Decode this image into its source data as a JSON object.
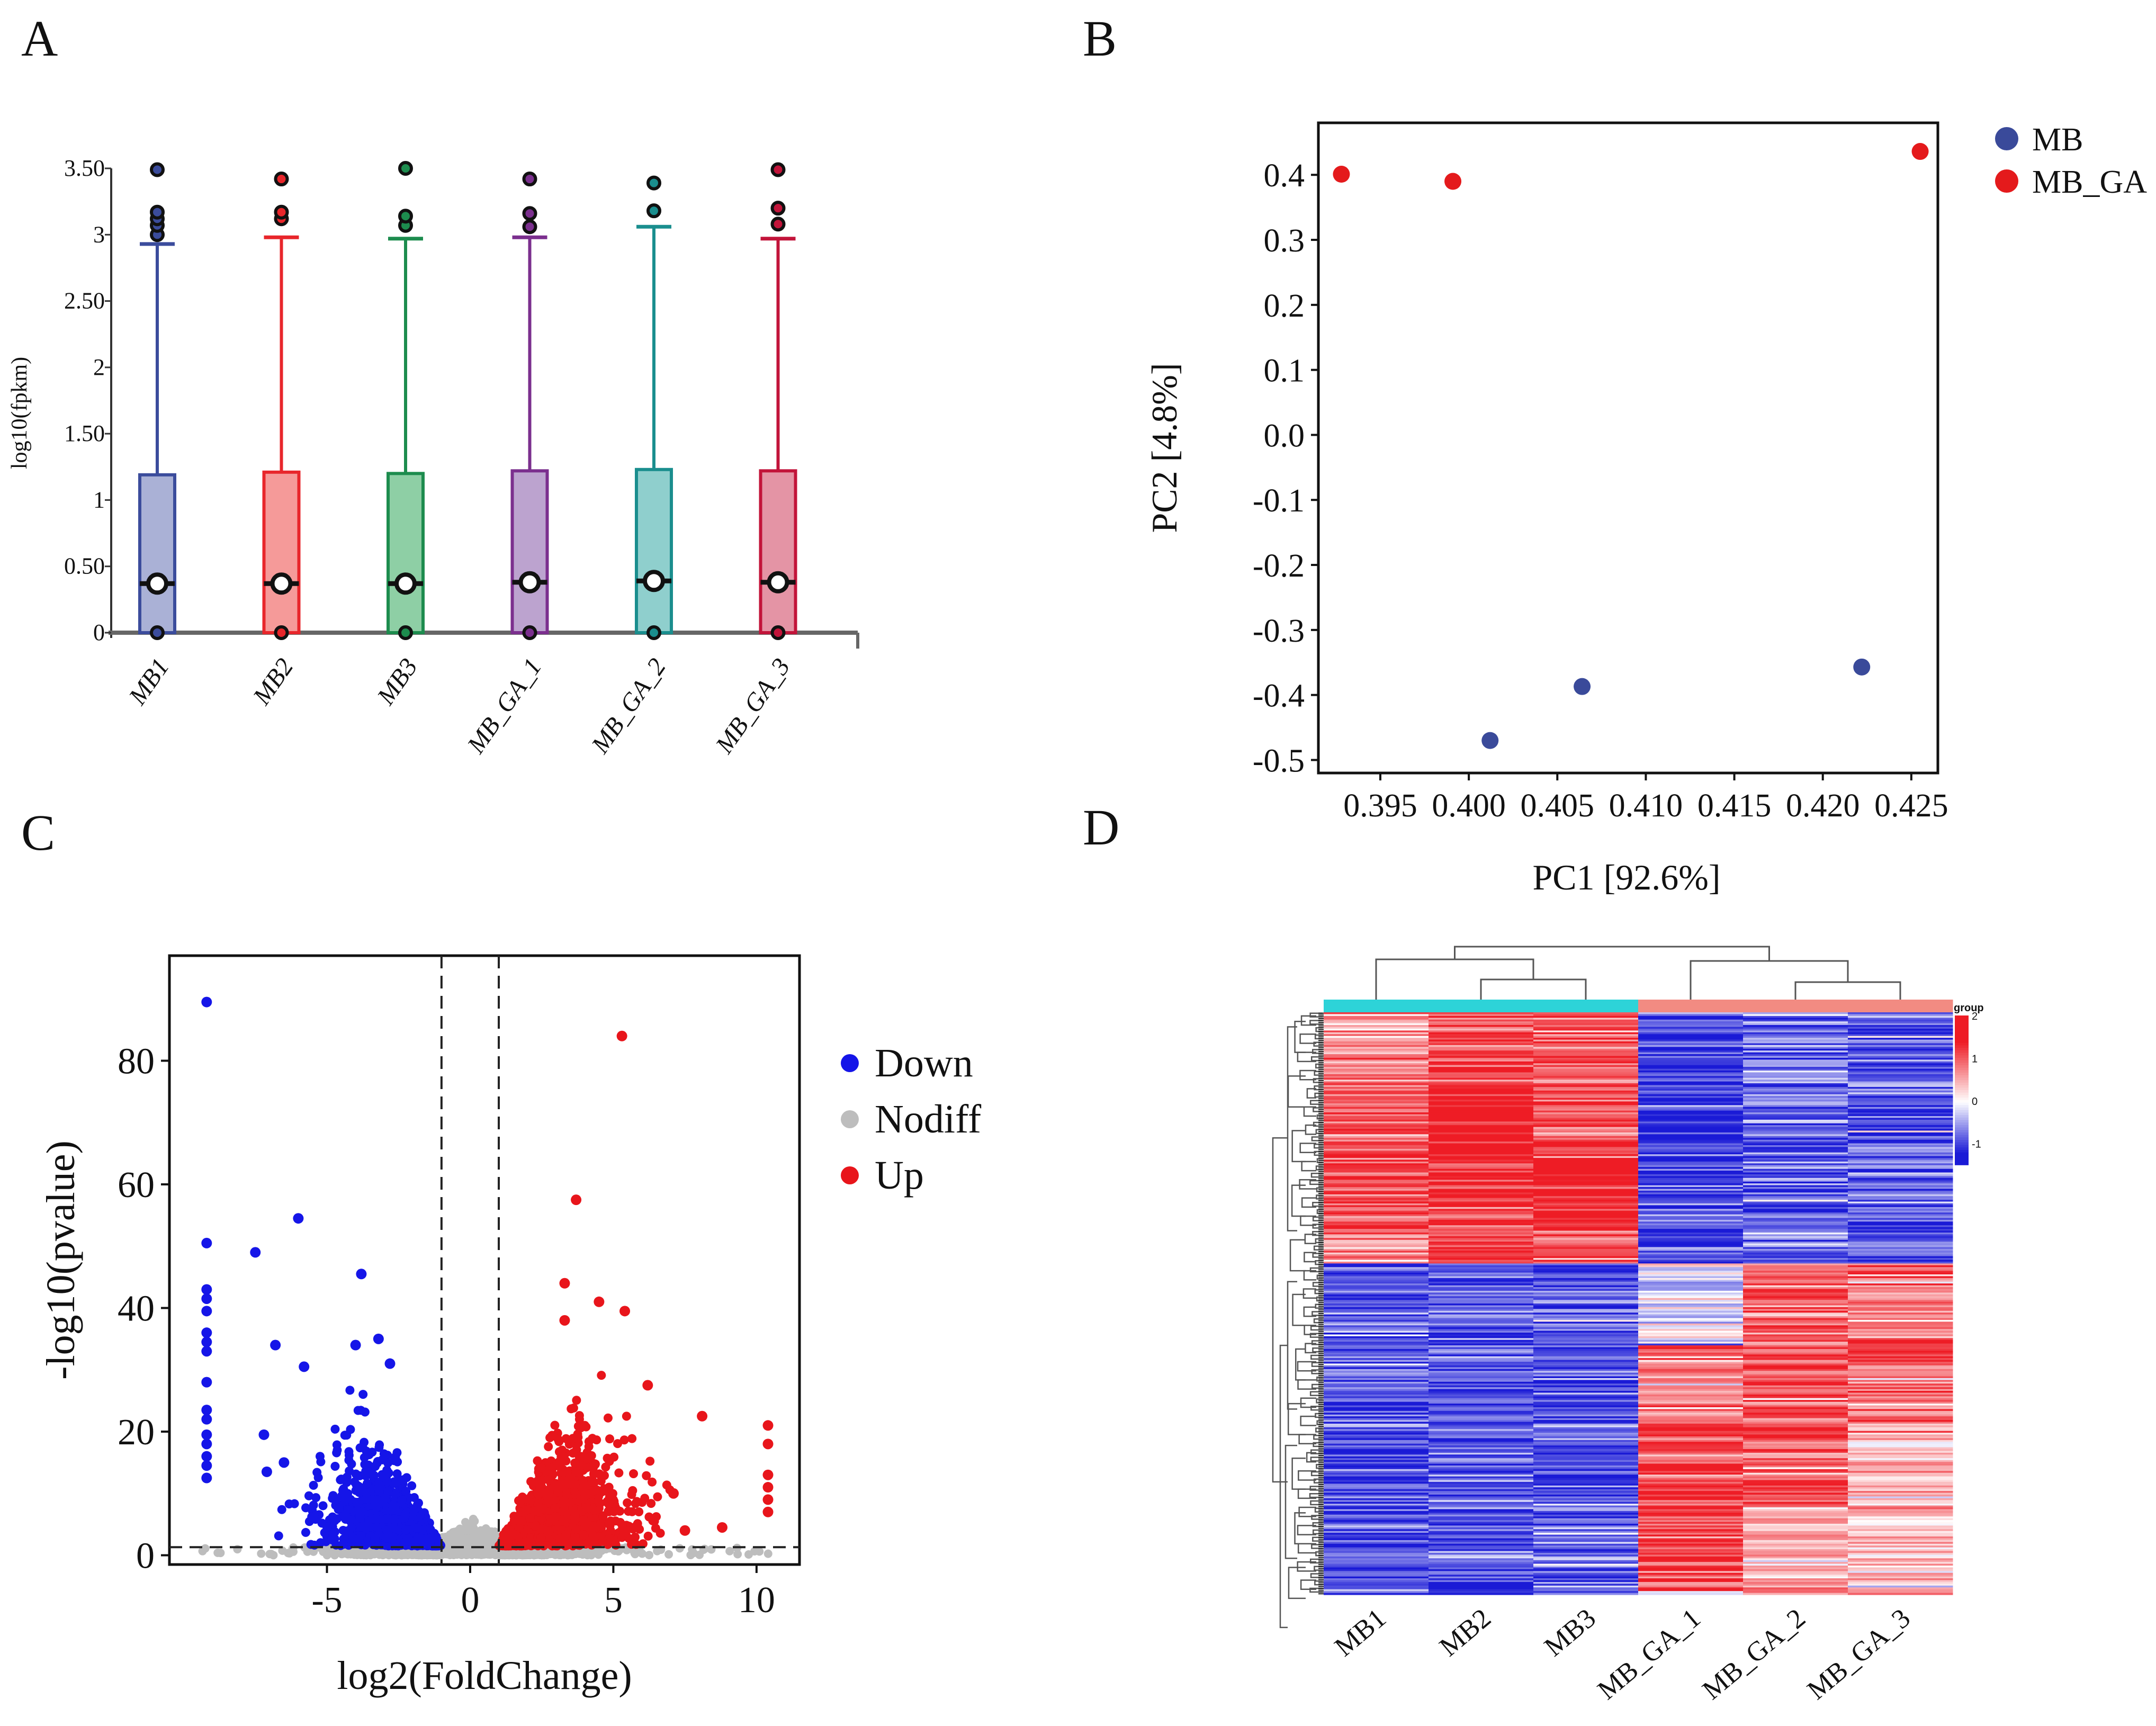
{
  "panel_labels": {
    "a": "A",
    "b": "B",
    "c": "C",
    "d": "D"
  },
  "chart_data": [
    {
      "id": "A",
      "type": "box",
      "ylabel": "log10(fpkm)",
      "ylim": [
        0,
        3.5
      ],
      "yticks": [
        "0",
        "0.50",
        "1",
        "1.50",
        "2",
        "2.50",
        "3",
        "3.50"
      ],
      "categories": [
        "MB1",
        "MB2",
        "MB3",
        "MB_GA_1",
        "MB_GA_2",
        "MB_GA_3"
      ],
      "colors": [
        "#3b4c9c",
        "#e8262b",
        "#1d8c4e",
        "#7b2f8e",
        "#1a8e8e",
        "#c2143a"
      ],
      "fills": [
        "#aab1d6",
        "#f59a99",
        "#8ecfa5",
        "#bca3cf",
        "#8fcfcd",
        "#e494a5"
      ],
      "boxes": [
        {
          "min": 0,
          "q1": 0,
          "median": 0.37,
          "q3": 1.19,
          "max": 2.93,
          "mean": 0.37,
          "outliers_high": [
            3.0,
            3.07,
            3.12,
            3.17,
            3.49
          ],
          "outliers_low": [
            0
          ]
        },
        {
          "min": 0,
          "q1": 0,
          "median": 0.37,
          "q3": 1.21,
          "max": 2.98,
          "mean": 0.37,
          "outliers_high": [
            3.12,
            3.17,
            3.42
          ],
          "outliers_low": [
            0
          ]
        },
        {
          "min": 0,
          "q1": 0,
          "median": 0.37,
          "q3": 1.2,
          "max": 2.97,
          "mean": 0.37,
          "outliers_high": [
            3.07,
            3.14,
            3.5
          ],
          "outliers_low": [
            0
          ]
        },
        {
          "min": 0,
          "q1": 0,
          "median": 0.38,
          "q3": 1.22,
          "max": 2.98,
          "mean": 0.38,
          "outliers_high": [
            3.06,
            3.16,
            3.42
          ],
          "outliers_low": [
            0
          ]
        },
        {
          "min": 0,
          "q1": 0,
          "median": 0.39,
          "q3": 1.23,
          "max": 3.06,
          "mean": 0.39,
          "outliers_high": [
            3.18,
            3.39
          ],
          "outliers_low": [
            0
          ]
        },
        {
          "min": 0,
          "q1": 0,
          "median": 0.38,
          "q3": 1.22,
          "max": 2.97,
          "mean": 0.38,
          "outliers_high": [
            3.08,
            3.2,
            3.49
          ],
          "outliers_low": [
            0
          ]
        }
      ]
    },
    {
      "id": "B",
      "type": "scatter",
      "xlabel": "PC1 [92.6%]",
      "ylabel": "PC2 [4.8%]",
      "xlim": [
        0.3915,
        0.4265
      ],
      "ylim": [
        -0.52,
        0.48
      ],
      "xticks": [
        0.395,
        0.4,
        0.405,
        0.41,
        0.415,
        0.42,
        0.425
      ],
      "xtick_labels": [
        "0.395",
        "0.400",
        "0.405",
        "0.410",
        "0.415",
        "0.420",
        "0.425"
      ],
      "yticks": [
        0.4,
        0.3,
        0.2,
        0.1,
        0.0,
        -0.1,
        -0.2,
        -0.3,
        -0.4,
        -0.5
      ],
      "ytick_labels": [
        "0.4",
        "0.3",
        "0.2",
        "0.1",
        "0.0",
        "-0.1",
        "-0.2",
        "-0.3",
        "-0.4",
        "-0.5"
      ],
      "series": [
        {
          "name": "MB",
          "color": "#3a4a9a",
          "points": [
            [
              0.4012,
              -0.47
            ],
            [
              0.4064,
              -0.387
            ],
            [
              0.4222,
              -0.357
            ]
          ]
        },
        {
          "name": "MB_GA",
          "color": "#e41a1c",
          "points": [
            [
              0.3928,
              0.401
            ],
            [
              0.3991,
              0.39
            ],
            [
              0.4255,
              0.436
            ]
          ]
        }
      ]
    },
    {
      "id": "C",
      "type": "scatter",
      "subtype": "volcano",
      "xlabel": "log2(FoldChange)",
      "ylabel": "-log10(pvalue)",
      "xlim": [
        -10.5,
        11.5
      ],
      "ylim": [
        -1.5,
        97
      ],
      "xticks": [
        -5,
        0,
        5,
        10
      ],
      "xtick_labels": [
        "-5",
        "0",
        "5",
        "10"
      ],
      "yticks": [
        0,
        20,
        40,
        60,
        80
      ],
      "ytick_labels": [
        "0",
        "20",
        "40",
        "60",
        "80"
      ],
      "thresholds": {
        "log2fc": [
          -1,
          1
        ],
        "neglog10p": 1.3
      },
      "legend": [
        {
          "name": "Down",
          "color": "#1515e8"
        },
        {
          "name": "Nodiff",
          "color": "#bdbdbd"
        },
        {
          "name": "Up",
          "color": "#e8151b"
        }
      ],
      "notable_points": {
        "down": [
          [
            -9.2,
            89.5
          ],
          [
            -9.2,
            50.5
          ],
          [
            -9.2,
            43
          ],
          [
            -9.2,
            41.5
          ],
          [
            -9.2,
            39.5
          ],
          [
            -9.2,
            36
          ],
          [
            -9.2,
            34.5
          ],
          [
            -9.2,
            33
          ],
          [
            -9.2,
            28
          ],
          [
            -9.2,
            23.5
          ],
          [
            -9.2,
            22
          ],
          [
            -9.2,
            19.5
          ],
          [
            -9.2,
            18
          ],
          [
            -9.2,
            16
          ],
          [
            -9.2,
            14.5
          ],
          [
            -9.2,
            12.5
          ],
          [
            -6,
            54.5
          ],
          [
            -7.5,
            49
          ],
          [
            -3.8,
            45.5
          ],
          [
            -6.8,
            34
          ],
          [
            -3.2,
            35
          ],
          [
            -4,
            34
          ],
          [
            -5.8,
            30.5
          ],
          [
            -2.8,
            31
          ],
          [
            -7.2,
            19.5
          ],
          [
            -6.5,
            15
          ],
          [
            -7.1,
            13.5
          ]
        ],
        "up": [
          [
            5.3,
            84
          ],
          [
            3.7,
            57.5
          ],
          [
            3.3,
            44
          ],
          [
            4.5,
            41
          ],
          [
            5.4,
            39.5
          ],
          [
            3.3,
            38
          ],
          [
            6.2,
            27.5
          ],
          [
            8.1,
            22.5
          ],
          [
            10.4,
            21
          ],
          [
            10.4,
            18
          ],
          [
            10.4,
            13
          ],
          [
            10.4,
            11
          ],
          [
            10.4,
            9
          ],
          [
            10.4,
            7
          ],
          [
            7.1,
            10
          ],
          [
            7.5,
            4
          ],
          [
            8.8,
            4.5
          ]
        ]
      },
      "cloud_counts": {
        "down": 1400,
        "up": 1600,
        "nodiff": 3500
      }
    },
    {
      "id": "D",
      "type": "heatmap",
      "columns": [
        "MB1",
        "MB2",
        "MB3",
        "MB_GA_1",
        "MB_GA_2",
        "MB_GA_3"
      ],
      "group_colors": [
        "#2dd3d8",
        "#2dd3d8",
        "#2dd3d8",
        "#f28b82",
        "#f28b82",
        "#f28b82"
      ],
      "legend_title": "group",
      "scale_ticks": [
        "2",
        "1",
        "0",
        "-1"
      ],
      "scale_range": [
        -1.5,
        2
      ],
      "low_color": "#1a1ad6",
      "mid_color": "#ffffff",
      "high_color": "#ee1c25",
      "clusters": [
        {
          "fraction": 0.43,
          "means": [
            1.0,
            1.15,
            1.05,
            -0.95,
            -0.75,
            -0.8
          ]
        },
        {
          "fraction": 0.57,
          "means": [
            -0.85,
            -0.85,
            -0.85,
            0.8,
            0.95,
            0.85
          ]
        }
      ]
    }
  ]
}
